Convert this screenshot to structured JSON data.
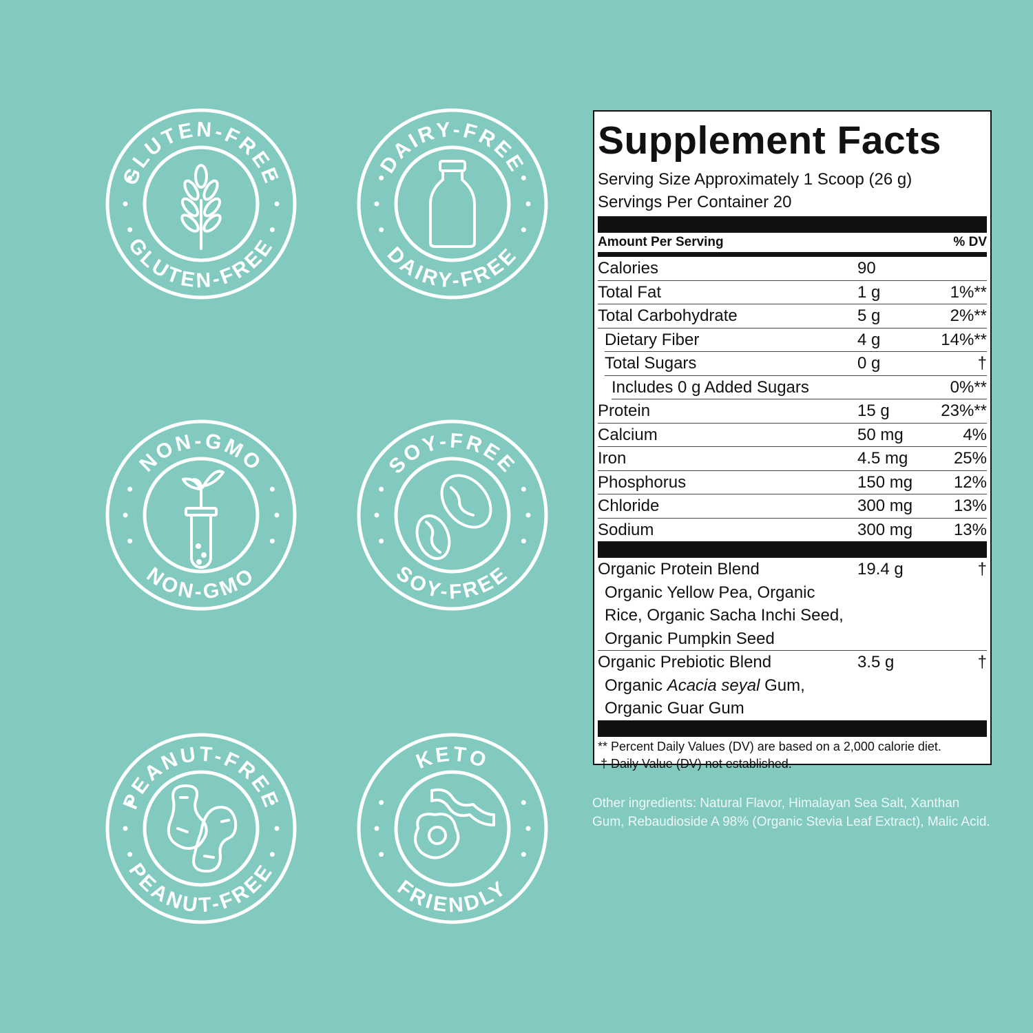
{
  "badges": [
    {
      "top": "GLUTEN-FREE",
      "bottom": "GLUTEN-FREE"
    },
    {
      "top": "DAIRY-FREE",
      "bottom": "DAIRY-FREE"
    },
    {
      "top": "NON-GMO",
      "bottom": "NON-GMO"
    },
    {
      "top": "SOY-FREE",
      "bottom": "SOY-FREE"
    },
    {
      "top": "PEANUT-FREE",
      "bottom": "PEANUT-FREE"
    },
    {
      "top": "KETO",
      "bottom": "FRIENDLY"
    }
  ],
  "facts": {
    "title": "Supplement Facts",
    "serving_size": "Serving Size Approximately 1 Scoop (26 g)",
    "servings": "Servings Per Container 20",
    "header": [
      "Amount Per Serving",
      "% DV"
    ],
    "rows": [
      {
        "name": "Calories",
        "amount": "90"
      },
      {
        "name": "Total Fat",
        "amount": "1 g",
        "dv": "1%**"
      },
      {
        "name": "Total Carbohydrate",
        "amount": "5 g",
        "dv": "2%**",
        "sub": [
          {
            "name": "Dietary Fiber",
            "amount": "4 g",
            "dv": "14%**"
          },
          {
            "name": "Total Sugars",
            "amount": "0 g",
            "dv": "†",
            "sub": [
              {
                "name": "Includes 0 g Added Sugars",
                "dv": "0%**"
              }
            ]
          }
        ]
      },
      {
        "name": "Protein",
        "amount": "15 g",
        "dv": "23%**"
      },
      {
        "name": "Calcium",
        "amount": "50 mg",
        "dv": "4%"
      },
      {
        "name": "Iron",
        "amount": "4.5 mg",
        "dv": "25%"
      },
      {
        "name": "Phosphorus",
        "amount": "150 mg",
        "dv": "12%"
      },
      {
        "name": "Chloride",
        "amount": "300 mg",
        "dv": "13%"
      },
      {
        "name": "Sodium",
        "amount": "300 mg",
        "dv": "13%"
      }
    ],
    "blends": [
      {
        "name": "Organic Protein Blend",
        "amount": "19.4 g",
        "dv": "†",
        "ingredients": [
          [
            "Organic Yellow Pea, Organic"
          ],
          [
            "Rice, Organic Sacha Inchi Seed,"
          ],
          [
            "Organic Pumpkin Seed"
          ]
        ]
      },
      {
        "name": "Organic Prebiotic Blend",
        "amount": "3.5 g",
        "dv": "†",
        "ingredients": [
          [
            "Organic ",
            "Acacia seyal",
            " Gum,"
          ],
          [
            "Organic Guar Gum"
          ]
        ]
      }
    ],
    "footnotes": [
      "** Percent Daily Values (DV) are based on a 2,000 calorie diet.",
      "† Daily Value (DV) not established."
    ]
  },
  "other_ingredients": "Other ingredients: Natural Flavor, Himalayan Sea Salt, Xanthan Gum, Rebaudioside A 98% (Organic Stevia Leaf Extract), Malic Acid."
}
